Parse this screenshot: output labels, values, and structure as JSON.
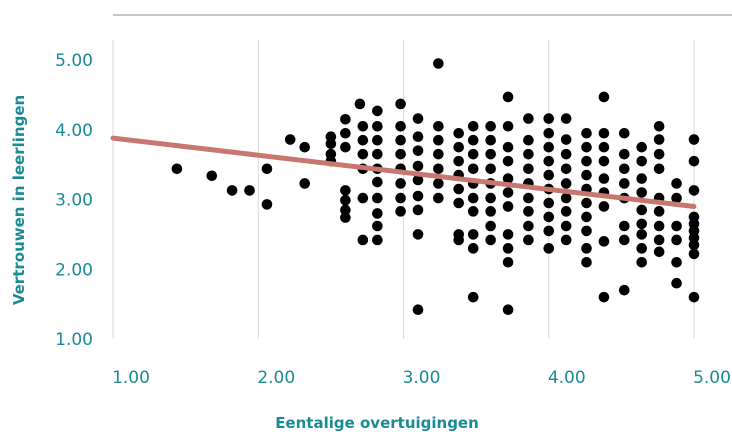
{
  "chart_data": {
    "type": "scatter",
    "title": "",
    "xlabel": "Eentalige overtuigingen",
    "ylabel": "Vertrouwen in leerlingen",
    "xlim": [
      1.0,
      5.0
    ],
    "ylim": [
      1.0,
      5.0
    ],
    "x_ticks": [
      "1.00",
      "2.00",
      "3.00",
      "4.00",
      "5.00"
    ],
    "y_ticks": [
      "1.00",
      "2.00",
      "3.00",
      "4.00",
      "5.00"
    ],
    "grid": "vertical",
    "colors": {
      "points": "#000000",
      "trend": "#c8776f",
      "text": "#1a8a96",
      "grid": "#d9d9d9",
      "top_rule": "#8c8c8c"
    },
    "trendline": {
      "x": [
        1.0,
        5.0
      ],
      "y": [
        3.88,
        2.9
      ]
    },
    "points": [
      [
        1.44,
        3.44
      ],
      [
        1.68,
        3.34
      ],
      [
        1.82,
        3.13
      ],
      [
        1.94,
        3.13
      ],
      [
        2.06,
        3.44
      ],
      [
        2.06,
        2.93
      ],
      [
        2.22,
        3.86
      ],
      [
        2.32,
        3.75
      ],
      [
        2.32,
        3.23
      ],
      [
        2.5,
        3.9
      ],
      [
        2.5,
        3.8
      ],
      [
        2.5,
        3.65
      ],
      [
        2.5,
        3.55
      ],
      [
        2.6,
        4.15
      ],
      [
        2.6,
        3.95
      ],
      [
        2.6,
        3.75
      ],
      [
        2.6,
        3.13
      ],
      [
        2.6,
        2.99
      ],
      [
        2.6,
        2.85
      ],
      [
        2.6,
        2.74
      ],
      [
        2.7,
        4.37
      ],
      [
        2.72,
        4.05
      ],
      [
        2.72,
        3.85
      ],
      [
        2.72,
        3.65
      ],
      [
        2.72,
        3.44
      ],
      [
        2.72,
        3.02
      ],
      [
        2.72,
        2.42
      ],
      [
        2.82,
        4.27
      ],
      [
        2.82,
        4.05
      ],
      [
        2.82,
        3.85
      ],
      [
        2.82,
        3.65
      ],
      [
        2.82,
        3.44
      ],
      [
        2.82,
        3.25
      ],
      [
        2.82,
        3.02
      ],
      [
        2.82,
        2.8
      ],
      [
        2.82,
        2.62
      ],
      [
        2.82,
        2.42
      ],
      [
        2.98,
        4.37
      ],
      [
        2.98,
        4.05
      ],
      [
        2.98,
        3.85
      ],
      [
        2.98,
        3.65
      ],
      [
        2.98,
        3.44
      ],
      [
        2.98,
        3.23
      ],
      [
        2.98,
        3.02
      ],
      [
        2.98,
        2.83
      ],
      [
        3.1,
        4.16
      ],
      [
        3.1,
        3.9
      ],
      [
        3.1,
        3.7
      ],
      [
        3.1,
        3.48
      ],
      [
        3.1,
        3.28
      ],
      [
        3.1,
        3.05
      ],
      [
        3.1,
        2.85
      ],
      [
        3.1,
        2.5
      ],
      [
        3.1,
        1.42
      ],
      [
        3.24,
        4.95
      ],
      [
        3.24,
        4.05
      ],
      [
        3.24,
        3.85
      ],
      [
        3.24,
        3.65
      ],
      [
        3.24,
        3.44
      ],
      [
        3.24,
        3.23
      ],
      [
        3.24,
        3.02
      ],
      [
        3.38,
        3.95
      ],
      [
        3.38,
        3.75
      ],
      [
        3.38,
        3.55
      ],
      [
        3.38,
        3.35
      ],
      [
        3.38,
        3.15
      ],
      [
        3.38,
        2.95
      ],
      [
        3.38,
        2.5
      ],
      [
        3.38,
        2.42
      ],
      [
        3.48,
        4.05
      ],
      [
        3.48,
        3.85
      ],
      [
        3.48,
        3.65
      ],
      [
        3.48,
        3.44
      ],
      [
        3.48,
        3.23
      ],
      [
        3.48,
        3.02
      ],
      [
        3.48,
        2.83
      ],
      [
        3.48,
        2.5
      ],
      [
        3.48,
        2.3
      ],
      [
        3.48,
        1.6
      ],
      [
        3.6,
        4.05
      ],
      [
        3.6,
        3.85
      ],
      [
        3.6,
        3.65
      ],
      [
        3.6,
        3.44
      ],
      [
        3.6,
        3.23
      ],
      [
        3.6,
        3.02
      ],
      [
        3.6,
        2.83
      ],
      [
        3.6,
        2.62
      ],
      [
        3.6,
        2.42
      ],
      [
        3.72,
        4.47
      ],
      [
        3.72,
        4.05
      ],
      [
        3.72,
        3.75
      ],
      [
        3.72,
        3.55
      ],
      [
        3.72,
        3.3
      ],
      [
        3.72,
        3.1
      ],
      [
        3.72,
        2.9
      ],
      [
        3.72,
        2.5
      ],
      [
        3.72,
        2.3
      ],
      [
        3.72,
        2.1
      ],
      [
        3.72,
        1.42
      ],
      [
        3.86,
        4.16
      ],
      [
        3.86,
        3.85
      ],
      [
        3.86,
        3.65
      ],
      [
        3.86,
        3.44
      ],
      [
        3.86,
        3.23
      ],
      [
        3.86,
        3.02
      ],
      [
        3.86,
        2.83
      ],
      [
        3.86,
        2.62
      ],
      [
        3.86,
        2.42
      ],
      [
        4.0,
        4.16
      ],
      [
        4.0,
        3.95
      ],
      [
        4.0,
        3.75
      ],
      [
        4.0,
        3.55
      ],
      [
        4.0,
        3.35
      ],
      [
        4.0,
        3.15
      ],
      [
        4.0,
        2.95
      ],
      [
        4.0,
        2.75
      ],
      [
        4.0,
        2.55
      ],
      [
        4.0,
        2.3
      ],
      [
        4.12,
        4.16
      ],
      [
        4.12,
        3.86
      ],
      [
        4.12,
        3.65
      ],
      [
        4.12,
        3.44
      ],
      [
        4.12,
        3.23
      ],
      [
        4.12,
        3.02
      ],
      [
        4.12,
        2.83
      ],
      [
        4.12,
        2.62
      ],
      [
        4.12,
        2.42
      ],
      [
        4.26,
        3.95
      ],
      [
        4.26,
        3.75
      ],
      [
        4.26,
        3.55
      ],
      [
        4.26,
        3.35
      ],
      [
        4.26,
        3.15
      ],
      [
        4.26,
        2.95
      ],
      [
        4.26,
        2.75
      ],
      [
        4.26,
        2.55
      ],
      [
        4.26,
        2.3
      ],
      [
        4.26,
        2.1
      ],
      [
        4.38,
        4.47
      ],
      [
        4.38,
        3.95
      ],
      [
        4.38,
        3.75
      ],
      [
        4.38,
        3.55
      ],
      [
        4.38,
        3.3
      ],
      [
        4.38,
        3.1
      ],
      [
        4.38,
        2.9
      ],
      [
        4.38,
        2.4
      ],
      [
        4.38,
        1.6
      ],
      [
        4.52,
        3.95
      ],
      [
        4.52,
        3.65
      ],
      [
        4.52,
        3.44
      ],
      [
        4.52,
        3.23
      ],
      [
        4.52,
        3.02
      ],
      [
        4.52,
        2.62
      ],
      [
        4.52,
        2.42
      ],
      [
        4.52,
        1.7
      ],
      [
        4.64,
        3.75
      ],
      [
        4.64,
        3.55
      ],
      [
        4.64,
        3.3
      ],
      [
        4.64,
        3.1
      ],
      [
        4.64,
        2.85
      ],
      [
        4.64,
        2.65
      ],
      [
        4.64,
        2.5
      ],
      [
        4.64,
        2.3
      ],
      [
        4.64,
        2.1
      ],
      [
        4.76,
        4.05
      ],
      [
        4.76,
        3.86
      ],
      [
        4.76,
        3.65
      ],
      [
        4.76,
        3.44
      ],
      [
        4.76,
        3.02
      ],
      [
        4.76,
        2.83
      ],
      [
        4.76,
        2.62
      ],
      [
        4.76,
        2.42
      ],
      [
        4.76,
        2.25
      ],
      [
        4.88,
        3.23
      ],
      [
        4.88,
        3.02
      ],
      [
        4.88,
        2.62
      ],
      [
        4.88,
        2.42
      ],
      [
        4.88,
        2.1
      ],
      [
        4.88,
        1.8
      ],
      [
        5.0,
        3.86
      ],
      [
        5.0,
        3.55
      ],
      [
        5.0,
        3.13
      ],
      [
        5.0,
        2.75
      ],
      [
        5.0,
        2.65
      ],
      [
        5.0,
        2.55
      ],
      [
        5.0,
        2.45
      ],
      [
        5.0,
        2.35
      ],
      [
        5.0,
        2.22
      ],
      [
        5.0,
        1.6
      ]
    ]
  }
}
